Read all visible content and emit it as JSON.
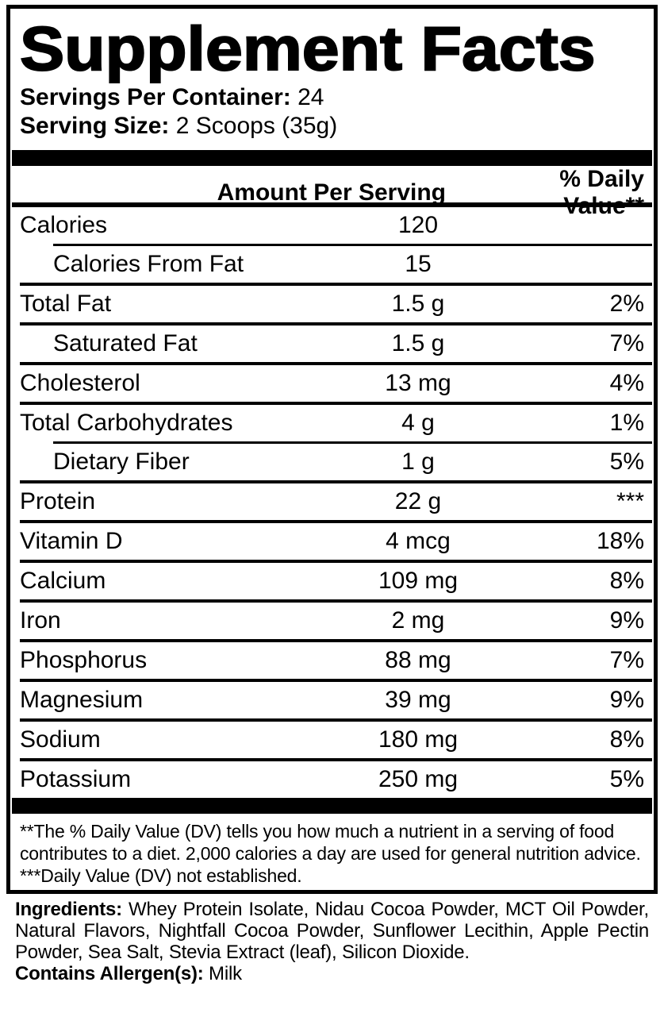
{
  "title": "Supplement Facts",
  "servings": {
    "label": "Servings Per Container:",
    "value": "24"
  },
  "serving_size": {
    "label": "Serving Size:",
    "value": "2 Scoops (35g)"
  },
  "table": {
    "header": {
      "amount": "Amount Per Serving",
      "daily_value": "% Daily Value**"
    },
    "rows": [
      {
        "name": "Calories",
        "amount": "120",
        "dv": "",
        "indent": false,
        "sep": "indented"
      },
      {
        "name": "Calories From Fat",
        "amount": "15",
        "dv": "",
        "indent": true,
        "sep": "full"
      },
      {
        "name": "Total Fat",
        "amount": "1.5 g",
        "dv": "2%",
        "indent": false,
        "sep": "full"
      },
      {
        "name": "Saturated Fat",
        "amount": "1.5 g",
        "dv": "7%",
        "indent": true,
        "sep": "full"
      },
      {
        "name": "Cholesterol",
        "amount": "13 mg",
        "dv": "4%",
        "indent": false,
        "sep": "full"
      },
      {
        "name": "Total Carbohydrates",
        "amount": "4 g",
        "dv": "1%",
        "indent": false,
        "sep": "indented"
      },
      {
        "name": "Dietary Fiber",
        "amount": "1 g",
        "dv": "5%",
        "indent": true,
        "sep": "full"
      },
      {
        "name": "Protein",
        "amount": "22 g",
        "dv": "***",
        "indent": false,
        "sep": "full"
      },
      {
        "name": "Vitamin D",
        "amount": "4 mcg",
        "dv": "18%",
        "indent": false,
        "sep": "full"
      },
      {
        "name": "Calcium",
        "amount": "109 mg",
        "dv": "8%",
        "indent": false,
        "sep": "full"
      },
      {
        "name": "Iron",
        "amount": "2 mg",
        "dv": "9%",
        "indent": false,
        "sep": "full"
      },
      {
        "name": "Phosphorus",
        "amount": "88 mg",
        "dv": "7%",
        "indent": false,
        "sep": "full"
      },
      {
        "name": "Magnesium",
        "amount": "39 mg",
        "dv": "9%",
        "indent": false,
        "sep": "full"
      },
      {
        "name": "Sodium",
        "amount": "180 mg",
        "dv": "8%",
        "indent": false,
        "sep": "full"
      },
      {
        "name": "Potassium",
        "amount": "250 mg",
        "dv": "5%",
        "indent": false,
        "sep": "none"
      }
    ]
  },
  "footnotes": {
    "dv_note": "**The % Daily Value (DV) tells you how much a nutrient in a serving of food contributes to a diet. 2,000 calories a day are used for general nutrition advice.",
    "not_established_note": "***Daily Value (DV) not established."
  },
  "ingredients": {
    "label": "Ingredients:",
    "text": " Whey Protein Isolate, Nidau Cocoa Powder, MCT Oil Powder, Natural Flavors, Nightfall Cocoa Powder, Sunflower Lecithin, Apple Pectin Powder, Sea Salt, Stevia Extract (leaf), Silicon Dioxide."
  },
  "allergens": {
    "label": "Contains Allergen(s):",
    "value": " Milk"
  },
  "colors": {
    "text": "#000000",
    "background": "#ffffff",
    "rule": "#000000"
  }
}
